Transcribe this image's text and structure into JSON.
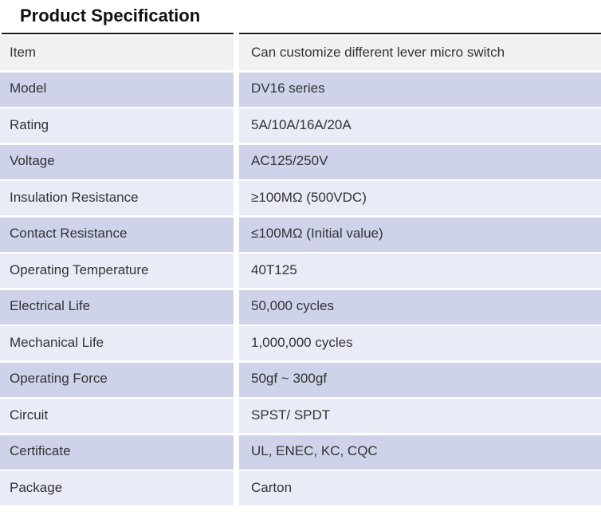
{
  "page": {
    "title": "Product Specification"
  },
  "table": {
    "columns": [
      "label",
      "value"
    ],
    "rows": [
      {
        "label": "Item",
        "value": "Can customize different lever micro switch"
      },
      {
        "label": "Model",
        "value": "DV16 series"
      },
      {
        "label": "Rating",
        "value": "5A/10A/16A/20A"
      },
      {
        "label": "Voltage",
        "value": "AC125/250V"
      },
      {
        "label": "Insulation Resistance",
        "value": "≥100MΩ (500VDC)"
      },
      {
        "label": "Contact Resistance",
        "value": "≤100MΩ (Initial value)"
      },
      {
        "label": "Operating Temperature",
        "value": "40T125"
      },
      {
        "label": "Electrical Life",
        "value": "50,000 cycles"
      },
      {
        "label": "Mechanical Life",
        "value": "1,000,000 cycles"
      },
      {
        "label": "Operating Force",
        "value": "50gf ~ 300gf"
      },
      {
        "label": "Circuit",
        "value": "SPST/ SPDT"
      },
      {
        "label": "Certificate",
        "value": "UL, ENEC, KC, CQC"
      },
      {
        "label": "Package",
        "value": "Carton"
      }
    ]
  },
  "colors": {
    "row_gray": "#f1f1f2",
    "row_dark": "#ced3ea",
    "row_light": "#e9ebf6",
    "rule": "#222222"
  }
}
